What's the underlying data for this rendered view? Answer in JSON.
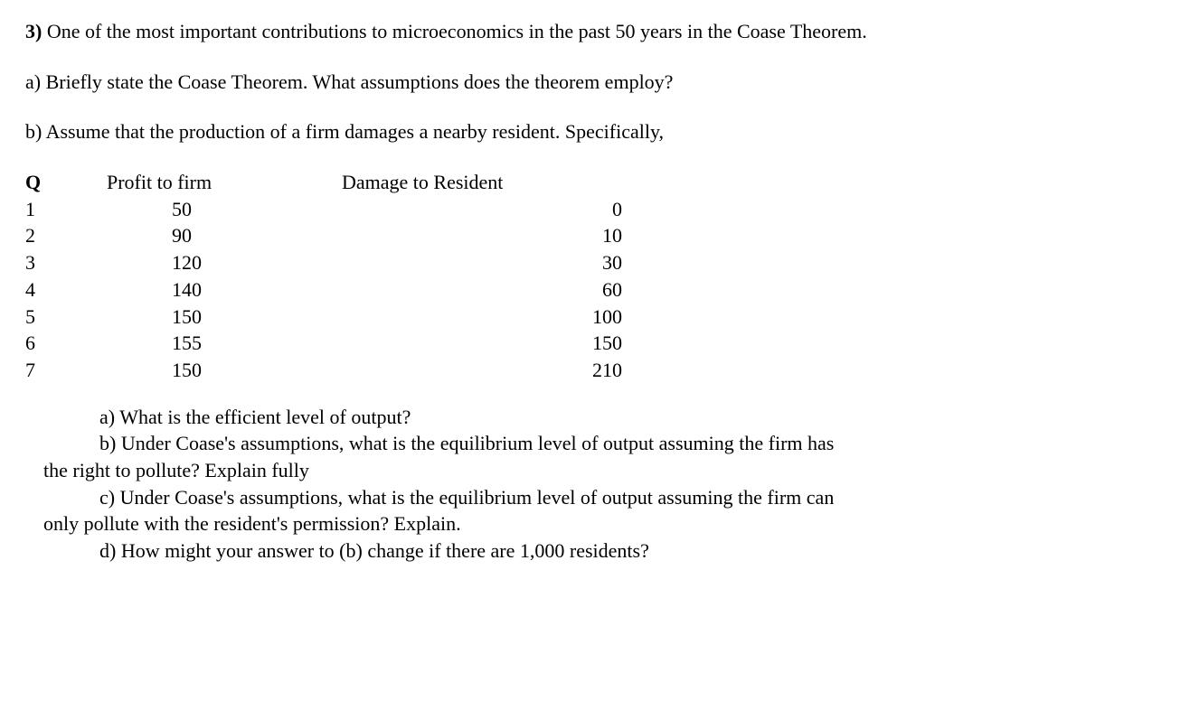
{
  "intro": {
    "marker": "3)",
    "text": " One of the most important contributions to microeconomics in the past 50 years in the Coase Theorem."
  },
  "partA": "a)  Briefly state the Coase Theorem.  What assumptions does the theorem employ?",
  "partB": "b)  Assume that the production of a firm damages a nearby resident.  Specifically,",
  "table": {
    "headers": {
      "q": "Q",
      "profit": "Profit to firm",
      "damage": "Damage to Resident"
    },
    "rows": [
      {
        "q": "1",
        "profit": "50",
        "damage": "0"
      },
      {
        "q": "2",
        "profit": "90",
        "damage": "10"
      },
      {
        "q": "3",
        "profit": "120",
        "damage": "30"
      },
      {
        "q": "4",
        "profit": "140",
        "damage": "60"
      },
      {
        "q": "5",
        "profit": "150",
        "damage": "100"
      },
      {
        "q": "6",
        "profit": "155",
        "damage": "150"
      },
      {
        "q": "7",
        "profit": "150",
        "damage": "210"
      }
    ]
  },
  "subs": {
    "a": "a)  What is the efficient level of output?",
    "b1": "b) Under Coase's assumptions, what is the equilibrium level of output assuming the firm has",
    "b2": "the right to pollute?  Explain fully",
    "c1": "c) Under Coase's assumptions, what is the equilibrium level of output assuming the firm can",
    "c2": "only pollute with the resident's permission? Explain.",
    "d": "d) How might your answer to (b) change if there are 1,000 residents?"
  }
}
